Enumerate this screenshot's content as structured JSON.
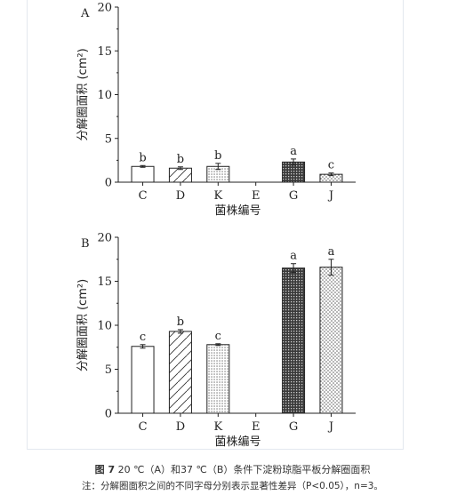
{
  "caption": {
    "figure_number": "图 7",
    "title": "20 ℃（A）和37 ℃（B）条件下淀粉琼脂平板分解圈面积",
    "note": "注：分解圈面积之间的不同字母分别表示显著性差异（P<0.05），n=3。"
  },
  "chart_data": [
    {
      "type": "bar",
      "panel_label": "A",
      "categories": [
        "C",
        "D",
        "K",
        "E",
        "G",
        "J"
      ],
      "values": [
        1.8,
        1.6,
        1.8,
        0,
        2.3,
        0.9
      ],
      "errors": [
        0.1,
        0.15,
        0.35,
        0,
        0.35,
        0.15
      ],
      "significance": [
        "b",
        "b",
        "b",
        "",
        "a",
        "c"
      ],
      "patterns": [
        "blank",
        "diagonal",
        "dots-fine",
        "blank",
        "dark-dense",
        "dots-coarse"
      ],
      "xlabel": "菌株编号",
      "ylabel": "分解圈面积 (cm²)",
      "ylim": [
        0,
        20
      ],
      "yticks": [
        0,
        5,
        10,
        15,
        20
      ],
      "grid": false,
      "legend": "none"
    },
    {
      "type": "bar",
      "panel_label": "B",
      "categories": [
        "C",
        "D",
        "K",
        "E",
        "G",
        "J"
      ],
      "values": [
        7.6,
        9.3,
        7.8,
        0,
        16.5,
        16.6
      ],
      "errors": [
        0.2,
        0.2,
        0.1,
        0,
        0.5,
        0.9
      ],
      "significance": [
        "c",
        "b",
        "c",
        "",
        "a",
        "a"
      ],
      "patterns": [
        "blank",
        "diagonal",
        "dots-fine",
        "blank",
        "dark-dense",
        "dots-coarse"
      ],
      "xlabel": "菌株编号",
      "ylabel": "分解圈面积 (cm²)",
      "ylim": [
        0,
        20
      ],
      "yticks": [
        0,
        5,
        10,
        15,
        20
      ],
      "grid": false,
      "legend": "none"
    }
  ]
}
